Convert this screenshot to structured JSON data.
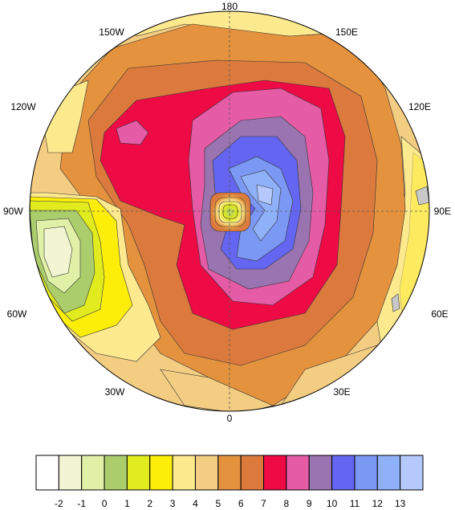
{
  "map": {
    "projection": "polar-stereographic",
    "grid_lines": "dashed",
    "longitude_labels": {
      "top": "180",
      "bottom": "0",
      "left": "90W",
      "right": "90E",
      "upper_left": "150W",
      "upper_right": "150E",
      "mid_upper_left": "120W",
      "mid_upper_right": "120E",
      "mid_lower_left": "60W",
      "mid_lower_right": "60E",
      "lower_left": "30W",
      "lower_right": "30E"
    }
  },
  "legend": {
    "labels": [
      "-2",
      "-1",
      "0",
      "1",
      "2",
      "3",
      "4",
      "5",
      "6",
      "7",
      "8",
      "9",
      "10",
      "11",
      "12",
      "13"
    ],
    "colors": [
      "#ffffff",
      "#f2f5d2",
      "#e0f0a6",
      "#abcd6c",
      "#e1eb1d",
      "#fcee09",
      "#fde98e",
      "#f3cd82",
      "#e4923d",
      "#dc7a3e",
      "#ee0a45",
      "#e55ba6",
      "#9a74b0",
      "#6466f2",
      "#7b98f4",
      "#8fb1fa",
      "#b5c9fc"
    ]
  },
  "land_mask_color": "#c8c8c8"
}
